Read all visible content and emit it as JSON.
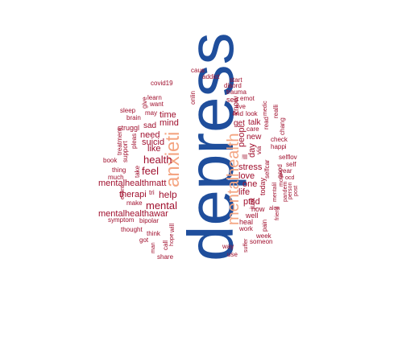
{
  "colors": {
    "big": "#1f4e9c",
    "mid": "#f4a582",
    "small": "#a0102e"
  },
  "words": [
    {
      "text": "depress",
      "level": "big"
    },
    {
      "text": "anxieti",
      "level": "mid"
    },
    {
      "text": "mentalhealth",
      "level": "mid"
    },
    {
      "text": "health",
      "level": "small"
    },
    {
      "text": "feel",
      "level": "small"
    },
    {
      "text": "mental",
      "level": "small"
    },
    {
      "text": "help",
      "level": "small"
    },
    {
      "text": "mentalhealthmatt",
      "level": "small"
    },
    {
      "text": "mentalhealthawar",
      "level": "small"
    },
    {
      "text": "need",
      "level": "small"
    },
    {
      "text": "suicid",
      "level": "small"
    },
    {
      "text": "mind",
      "level": "small"
    },
    {
      "text": "time",
      "level": "small"
    },
    {
      "text": "like",
      "level": "small"
    },
    {
      "text": "sad",
      "level": "small"
    },
    {
      "text": "struggl",
      "level": "small"
    },
    {
      "text": "therapi",
      "level": "small"
    },
    {
      "text": "stress",
      "level": "small"
    },
    {
      "text": "life",
      "level": "small"
    },
    {
      "text": "love",
      "level": "small"
    },
    {
      "text": "one",
      "level": "small"
    },
    {
      "text": "ptsd",
      "level": "small"
    },
    {
      "text": "get",
      "level": "small"
    },
    {
      "text": "peopl",
      "level": "small"
    },
    {
      "text": "day",
      "level": "small"
    },
    {
      "text": "new",
      "level": "small"
    },
    {
      "text": "talk",
      "level": "small"
    },
    {
      "text": "know",
      "level": "small"
    },
    {
      "text": "see",
      "level": "small"
    },
    {
      "text": "emot",
      "level": "small"
    },
    {
      "text": "trauma",
      "level": "small"
    },
    {
      "text": "disord",
      "level": "small"
    },
    {
      "text": "start",
      "level": "small"
    },
    {
      "text": "caus",
      "level": "small"
    },
    {
      "text": "addict",
      "level": "small"
    },
    {
      "text": "covid19",
      "level": "small"
    },
    {
      "text": "learn",
      "level": "small"
    },
    {
      "text": "want",
      "level": "small"
    },
    {
      "text": "onlin",
      "level": "small"
    },
    {
      "text": "may",
      "level": "small"
    },
    {
      "text": "brain",
      "level": "small"
    },
    {
      "text": "give",
      "level": "small"
    },
    {
      "text": "sleep",
      "level": "small"
    },
    {
      "text": "treatment",
      "level": "small"
    },
    {
      "text": "support",
      "level": "small"
    },
    {
      "text": "pleas",
      "level": "small"
    },
    {
      "text": "book",
      "level": "small"
    },
    {
      "text": "thing",
      "level": "small"
    },
    {
      "text": "much",
      "level": "small"
    },
    {
      "text": "take",
      "level": "small"
    },
    {
      "text": "make",
      "level": "small"
    },
    {
      "text": "event",
      "level": "small"
    },
    {
      "text": "tri",
      "level": "small"
    },
    {
      "text": "symptom",
      "level": "small"
    },
    {
      "text": "bipolar",
      "level": "small"
    },
    {
      "text": "thought",
      "level": "small"
    },
    {
      "text": "think",
      "level": "small"
    },
    {
      "text": "got",
      "level": "small"
    },
    {
      "text": "man",
      "level": "small"
    },
    {
      "text": "call",
      "level": "small"
    },
    {
      "text": "hope",
      "level": "small"
    },
    {
      "text": "will",
      "level": "small"
    },
    {
      "text": "share",
      "level": "small"
    },
    {
      "text": "find",
      "level": "small"
    },
    {
      "text": "look",
      "level": "small"
    },
    {
      "text": "live",
      "level": "small"
    },
    {
      "text": "care",
      "level": "small"
    },
    {
      "text": "read",
      "level": "small"
    },
    {
      "text": "medic",
      "level": "small"
    },
    {
      "text": "realli",
      "level": "small"
    },
    {
      "text": "chang",
      "level": "small"
    },
    {
      "text": "via",
      "level": "small"
    },
    {
      "text": "check",
      "level": "small"
    },
    {
      "text": "happi",
      "level": "small"
    },
    {
      "text": "selflov",
      "level": "small"
    },
    {
      "text": "self",
      "level": "small"
    },
    {
      "text": "year",
      "level": "small"
    },
    {
      "text": "selfcar",
      "level": "small"
    },
    {
      "text": "good",
      "level": "small"
    },
    {
      "text": "mentalil",
      "level": "small"
    },
    {
      "text": "ocd",
      "level": "small"
    },
    {
      "text": "pandem",
      "level": "small"
    },
    {
      "text": "person",
      "level": "small"
    },
    {
      "text": "post",
      "level": "small"
    },
    {
      "text": "motiv",
      "level": "small"
    },
    {
      "text": "alon",
      "level": "small"
    },
    {
      "text": "friend",
      "level": "small"
    },
    {
      "text": "today",
      "level": "small"
    },
    {
      "text": "just",
      "level": "small"
    },
    {
      "text": "ill",
      "level": "small"
    },
    {
      "text": "now",
      "level": "small"
    },
    {
      "text": "well",
      "level": "small"
    },
    {
      "text": "heal",
      "level": "small"
    },
    {
      "text": "work",
      "level": "small"
    },
    {
      "text": "pain",
      "level": "small"
    },
    {
      "text": "week",
      "level": "small"
    },
    {
      "text": "someon",
      "level": "small"
    },
    {
      "text": "way",
      "level": "small"
    },
    {
      "text": "use",
      "level": "small"
    },
    {
      "text": "suffer",
      "level": "small"
    }
  ]
}
